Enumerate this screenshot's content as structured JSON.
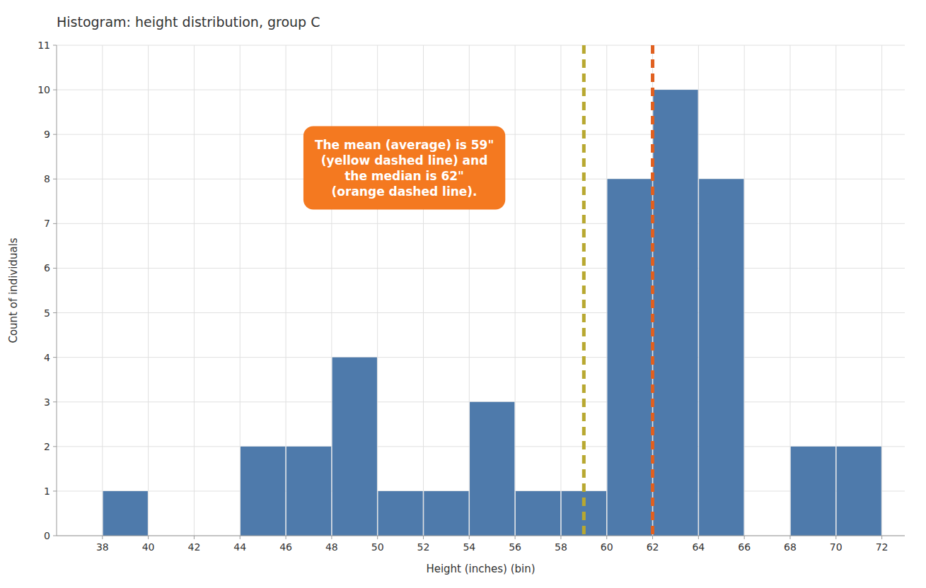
{
  "chart_data": {
    "type": "histogram",
    "title": "Histogram: height distribution, group C",
    "x_label": "Height (inches) (bin)",
    "y_label": "Count of individuals",
    "bins": [
      38,
      40,
      42,
      44,
      46,
      48,
      50,
      52,
      54,
      56,
      58,
      60,
      62,
      64,
      66,
      68,
      70,
      72
    ],
    "values": [
      1,
      0,
      0,
      2,
      2,
      4,
      1,
      1,
      3,
      1,
      1,
      8,
      10,
      8,
      0,
      2,
      2
    ],
    "color": "#4e7aab",
    "xlim": [
      36,
      73
    ],
    "ylim": [
      0,
      11
    ],
    "xticks": [
      38,
      40,
      42,
      44,
      46,
      48,
      50,
      52,
      54,
      56,
      58,
      60,
      62,
      64,
      66,
      68,
      70,
      72
    ],
    "yticks": [
      0,
      1,
      2,
      3,
      4,
      5,
      6,
      7,
      8,
      9,
      10,
      11
    ],
    "grid": true,
    "vlines": [
      {
        "value": 59,
        "color": "#b8a830",
        "line_style": "dashed"
      },
      {
        "value": 62,
        "color": "#e06020",
        "line_style": "dashed"
      }
    ],
    "annotations": [
      {
        "text": "The mean (average) is 59\"\n(yellow dashed line) and\nthe median is 62\"\n(orange dashed line).",
        "color": "#ffffff",
        "background": "#f47920"
      }
    ]
  }
}
